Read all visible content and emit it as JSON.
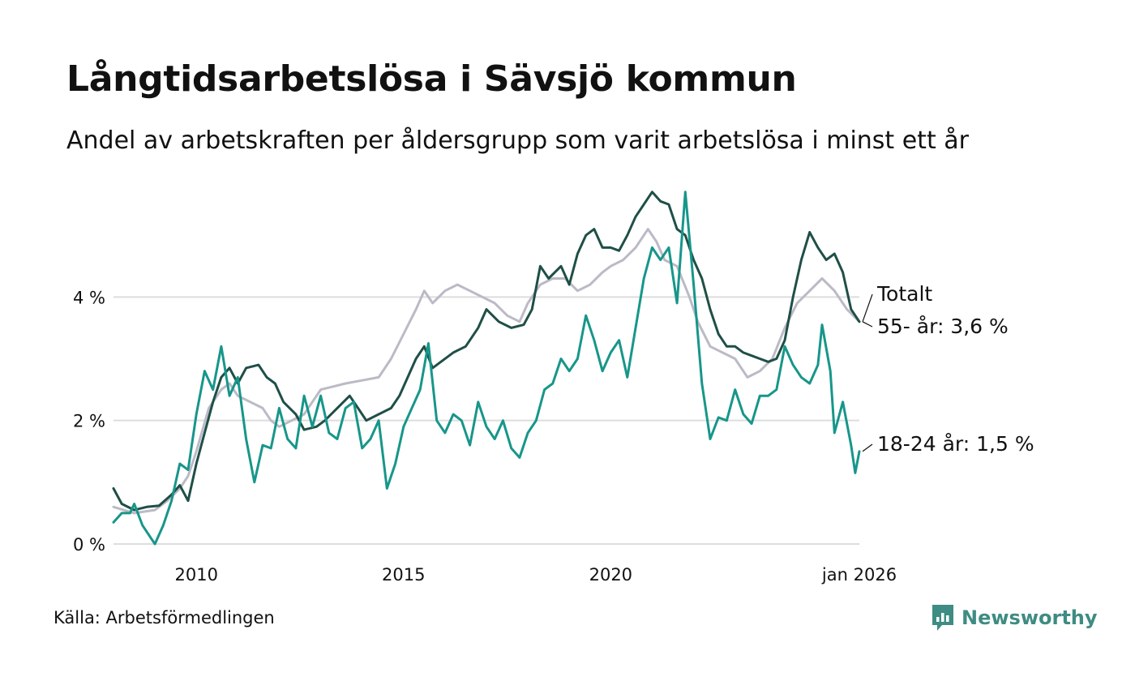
{
  "title": "Långtidsarbetslösa i Sävsjö kommun",
  "subtitle": "Andel av arbetskraften per åldersgrupp som varit arbetslösa i minst ett år",
  "source": "Källa: Arbetsförmedlingen",
  "brand": "Newsworthy",
  "colors": {
    "total": "#bbbac6",
    "age55": "#1f4f47",
    "age18_24": "#17968a",
    "grid": "#dddddd",
    "brand": "#3e8c83"
  },
  "chart_data": {
    "type": "line",
    "title": "Långtidsarbetslösa i Sävsjö kommun",
    "xlabel": "",
    "ylabel": "",
    "x_start": "2008-01",
    "x_end": "2026-01",
    "x_range": [
      2008.0,
      2026.0
    ],
    "ylim": [
      0,
      6
    ],
    "y_ticks": [
      0,
      2,
      4
    ],
    "y_tick_labels": [
      "0 %",
      "2 %",
      "4 %"
    ],
    "x_ticks": [
      2010,
      2015,
      2020,
      2026
    ],
    "x_tick_labels": [
      "2010",
      "2015",
      "2020",
      "jan 2026"
    ],
    "grid": true,
    "series": [
      {
        "name": "Totalt",
        "label": "Totalt",
        "color_key": "total",
        "points": [
          [
            2008.0,
            0.6
          ],
          [
            2008.5,
            0.5
          ],
          [
            2009.0,
            0.55
          ],
          [
            2009.3,
            0.7
          ],
          [
            2009.6,
            0.9
          ],
          [
            2009.8,
            1.1
          ],
          [
            2010.0,
            1.5
          ],
          [
            2010.3,
            2.2
          ],
          [
            2010.6,
            2.5
          ],
          [
            2010.8,
            2.6
          ],
          [
            2011.0,
            2.4
          ],
          [
            2011.3,
            2.3
          ],
          [
            2011.6,
            2.2
          ],
          [
            2011.8,
            2.0
          ],
          [
            2012.0,
            1.9
          ],
          [
            2012.3,
            2.0
          ],
          [
            2012.6,
            2.1
          ],
          [
            2012.8,
            2.3
          ],
          [
            2013.0,
            2.5
          ],
          [
            2013.3,
            2.55
          ],
          [
            2013.6,
            2.6
          ],
          [
            2014.0,
            2.65
          ],
          [
            2014.4,
            2.7
          ],
          [
            2014.7,
            3.0
          ],
          [
            2015.0,
            3.4
          ],
          [
            2015.3,
            3.8
          ],
          [
            2015.5,
            4.1
          ],
          [
            2015.7,
            3.9
          ],
          [
            2016.0,
            4.1
          ],
          [
            2016.3,
            4.2
          ],
          [
            2016.6,
            4.1
          ],
          [
            2016.9,
            4.0
          ],
          [
            2017.2,
            3.9
          ],
          [
            2017.5,
            3.7
          ],
          [
            2017.8,
            3.6
          ],
          [
            2018.0,
            3.9
          ],
          [
            2018.3,
            4.2
          ],
          [
            2018.6,
            4.3
          ],
          [
            2018.9,
            4.3
          ],
          [
            2019.2,
            4.1
          ],
          [
            2019.5,
            4.2
          ],
          [
            2019.8,
            4.4
          ],
          [
            2020.0,
            4.5
          ],
          [
            2020.3,
            4.6
          ],
          [
            2020.6,
            4.8
          ],
          [
            2020.9,
            5.1
          ],
          [
            2021.1,
            4.9
          ],
          [
            2021.3,
            4.6
          ],
          [
            2021.6,
            4.5
          ],
          [
            2021.9,
            4.0
          ],
          [
            2022.1,
            3.6
          ],
          [
            2022.4,
            3.2
          ],
          [
            2022.7,
            3.1
          ],
          [
            2023.0,
            3.0
          ],
          [
            2023.3,
            2.7
          ],
          [
            2023.6,
            2.8
          ],
          [
            2023.9,
            3.0
          ],
          [
            2024.2,
            3.5
          ],
          [
            2024.5,
            3.9
          ],
          [
            2024.8,
            4.1
          ],
          [
            2025.1,
            4.3
          ],
          [
            2025.4,
            4.1
          ],
          [
            2025.7,
            3.8
          ],
          [
            2026.0,
            3.6
          ]
        ]
      },
      {
        "name": "55- år",
        "label": "55- år: 3,6 %",
        "color_key": "age55",
        "points": [
          [
            2008.0,
            0.9
          ],
          [
            2008.2,
            0.65
          ],
          [
            2008.5,
            0.55
          ],
          [
            2008.8,
            0.6
          ],
          [
            2009.1,
            0.62
          ],
          [
            2009.4,
            0.8
          ],
          [
            2009.6,
            0.95
          ],
          [
            2009.8,
            0.7
          ],
          [
            2010.0,
            1.3
          ],
          [
            2010.2,
            1.8
          ],
          [
            2010.4,
            2.3
          ],
          [
            2010.6,
            2.7
          ],
          [
            2010.8,
            2.85
          ],
          [
            2011.0,
            2.6
          ],
          [
            2011.2,
            2.85
          ],
          [
            2011.5,
            2.9
          ],
          [
            2011.7,
            2.7
          ],
          [
            2011.9,
            2.6
          ],
          [
            2012.1,
            2.3
          ],
          [
            2012.4,
            2.1
          ],
          [
            2012.6,
            1.85
          ],
          [
            2012.9,
            1.9
          ],
          [
            2013.1,
            2.0
          ],
          [
            2013.4,
            2.2
          ],
          [
            2013.7,
            2.4
          ],
          [
            2013.9,
            2.2
          ],
          [
            2014.1,
            2.0
          ],
          [
            2014.4,
            2.1
          ],
          [
            2014.7,
            2.2
          ],
          [
            2014.9,
            2.4
          ],
          [
            2015.1,
            2.7
          ],
          [
            2015.3,
            3.0
          ],
          [
            2015.5,
            3.2
          ],
          [
            2015.7,
            2.85
          ],
          [
            2015.9,
            2.95
          ],
          [
            2016.2,
            3.1
          ],
          [
            2016.5,
            3.2
          ],
          [
            2016.8,
            3.5
          ],
          [
            2017.0,
            3.8
          ],
          [
            2017.3,
            3.6
          ],
          [
            2017.6,
            3.5
          ],
          [
            2017.9,
            3.55
          ],
          [
            2018.1,
            3.8
          ],
          [
            2018.3,
            4.5
          ],
          [
            2018.5,
            4.3
          ],
          [
            2018.8,
            4.5
          ],
          [
            2019.0,
            4.2
          ],
          [
            2019.2,
            4.7
          ],
          [
            2019.4,
            5.0
          ],
          [
            2019.6,
            5.1
          ],
          [
            2019.8,
            4.8
          ],
          [
            2020.0,
            4.8
          ],
          [
            2020.2,
            4.75
          ],
          [
            2020.4,
            5.0
          ],
          [
            2020.6,
            5.3
          ],
          [
            2020.8,
            5.5
          ],
          [
            2021.0,
            5.7
          ],
          [
            2021.2,
            5.55
          ],
          [
            2021.4,
            5.5
          ],
          [
            2021.6,
            5.1
          ],
          [
            2021.8,
            5.0
          ],
          [
            2022.0,
            4.6
          ],
          [
            2022.2,
            4.3
          ],
          [
            2022.4,
            3.8
          ],
          [
            2022.6,
            3.4
          ],
          [
            2022.8,
            3.2
          ],
          [
            2023.0,
            3.2
          ],
          [
            2023.2,
            3.1
          ],
          [
            2023.4,
            3.05
          ],
          [
            2023.6,
            3.0
          ],
          [
            2023.8,
            2.95
          ],
          [
            2024.0,
            3.0
          ],
          [
            2024.2,
            3.3
          ],
          [
            2024.4,
            4.0
          ],
          [
            2024.6,
            4.6
          ],
          [
            2024.8,
            5.05
          ],
          [
            2025.0,
            4.8
          ],
          [
            2025.2,
            4.6
          ],
          [
            2025.4,
            4.7
          ],
          [
            2025.6,
            4.4
          ],
          [
            2025.8,
            3.8
          ],
          [
            2026.0,
            3.6
          ]
        ]
      },
      {
        "name": "18-24 år",
        "label": "18-24 år: 1,5 %",
        "color_key": "age18_24",
        "points": [
          [
            2008.0,
            0.35
          ],
          [
            2008.2,
            0.5
          ],
          [
            2008.4,
            0.5
          ],
          [
            2008.5,
            0.65
          ],
          [
            2008.7,
            0.3
          ],
          [
            2008.9,
            0.1
          ],
          [
            2009.0,
            0.0
          ],
          [
            2009.2,
            0.3
          ],
          [
            2009.4,
            0.7
          ],
          [
            2009.6,
            1.3
          ],
          [
            2009.8,
            1.2
          ],
          [
            2010.0,
            2.1
          ],
          [
            2010.2,
            2.8
          ],
          [
            2010.4,
            2.5
          ],
          [
            2010.6,
            3.2
          ],
          [
            2010.8,
            2.4
          ],
          [
            2011.0,
            2.7
          ],
          [
            2011.2,
            1.7
          ],
          [
            2011.4,
            1.0
          ],
          [
            2011.6,
            1.6
          ],
          [
            2011.8,
            1.55
          ],
          [
            2012.0,
            2.2
          ],
          [
            2012.2,
            1.7
          ],
          [
            2012.4,
            1.55
          ],
          [
            2012.6,
            2.4
          ],
          [
            2012.8,
            1.9
          ],
          [
            2013.0,
            2.4
          ],
          [
            2013.2,
            1.8
          ],
          [
            2013.4,
            1.7
          ],
          [
            2013.6,
            2.2
          ],
          [
            2013.8,
            2.3
          ],
          [
            2014.0,
            1.55
          ],
          [
            2014.2,
            1.7
          ],
          [
            2014.4,
            2.0
          ],
          [
            2014.6,
            0.9
          ],
          [
            2014.8,
            1.3
          ],
          [
            2015.0,
            1.9
          ],
          [
            2015.2,
            2.2
          ],
          [
            2015.4,
            2.5
          ],
          [
            2015.6,
            3.25
          ],
          [
            2015.8,
            2.0
          ],
          [
            2016.0,
            1.8
          ],
          [
            2016.2,
            2.1
          ],
          [
            2016.4,
            2.0
          ],
          [
            2016.6,
            1.6
          ],
          [
            2016.8,
            2.3
          ],
          [
            2017.0,
            1.9
          ],
          [
            2017.2,
            1.7
          ],
          [
            2017.4,
            2.0
          ],
          [
            2017.6,
            1.55
          ],
          [
            2017.8,
            1.4
          ],
          [
            2018.0,
            1.8
          ],
          [
            2018.2,
            2.0
          ],
          [
            2018.4,
            2.5
          ],
          [
            2018.6,
            2.6
          ],
          [
            2018.8,
            3.0
          ],
          [
            2019.0,
            2.8
          ],
          [
            2019.2,
            3.0
          ],
          [
            2019.4,
            3.7
          ],
          [
            2019.6,
            3.3
          ],
          [
            2019.8,
            2.8
          ],
          [
            2020.0,
            3.1
          ],
          [
            2020.2,
            3.3
          ],
          [
            2020.4,
            2.7
          ],
          [
            2020.6,
            3.5
          ],
          [
            2020.8,
            4.3
          ],
          [
            2021.0,
            4.8
          ],
          [
            2021.2,
            4.6
          ],
          [
            2021.4,
            4.8
          ],
          [
            2021.6,
            3.9
          ],
          [
            2021.8,
            5.7
          ],
          [
            2022.0,
            4.2
          ],
          [
            2022.2,
            2.6
          ],
          [
            2022.4,
            1.7
          ],
          [
            2022.6,
            2.05
          ],
          [
            2022.8,
            2.0
          ],
          [
            2023.0,
            2.5
          ],
          [
            2023.2,
            2.1
          ],
          [
            2023.4,
            1.95
          ],
          [
            2023.6,
            2.4
          ],
          [
            2023.8,
            2.4
          ],
          [
            2024.0,
            2.5
          ],
          [
            2024.2,
            3.2
          ],
          [
            2024.4,
            2.9
          ],
          [
            2024.6,
            2.7
          ],
          [
            2024.8,
            2.6
          ],
          [
            2025.0,
            2.9
          ],
          [
            2025.1,
            3.55
          ],
          [
            2025.3,
            2.8
          ],
          [
            2025.4,
            1.8
          ],
          [
            2025.6,
            2.3
          ],
          [
            2025.8,
            1.6
          ],
          [
            2025.9,
            1.15
          ],
          [
            2026.0,
            1.5
          ]
        ]
      }
    ]
  }
}
